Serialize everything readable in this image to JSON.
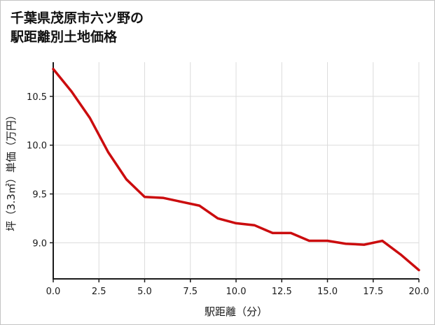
{
  "title": {
    "line1": "千葉県茂原市六ツ野の",
    "line2": "駅距離別土地価格"
  },
  "chart_data": {
    "type": "line",
    "title": "千葉県茂原市六ツ野の駅距離別土地価格",
    "xlabel": "駅距離（分）",
    "ylabel": "坪（3.3㎡）単価（万円）",
    "x": [
      0,
      1,
      2,
      3,
      4,
      5,
      6,
      7,
      8,
      9,
      10,
      11,
      12,
      13,
      14,
      15,
      16,
      17,
      18,
      19,
      20
    ],
    "values": [
      10.78,
      10.55,
      10.28,
      9.93,
      9.65,
      9.47,
      9.46,
      9.42,
      9.38,
      9.25,
      9.2,
      9.18,
      9.1,
      9.1,
      9.02,
      9.02,
      8.99,
      8.98,
      9.02,
      8.88,
      8.72
    ],
    "xlim": [
      0,
      20
    ],
    "ylim": [
      8.63,
      10.85
    ],
    "xticks": [
      0,
      2.5,
      5,
      7.5,
      10,
      12.5,
      15,
      17.5,
      20
    ],
    "xtick_labels": [
      "0.0",
      "2.5",
      "5.0",
      "7.5",
      "10.0",
      "12.5",
      "15.0",
      "17.5",
      "20.0"
    ],
    "yticks": [
      9.0,
      9.5,
      10.0,
      10.5
    ],
    "ytick_labels": [
      "9.0",
      "9.5",
      "10.0",
      "10.5"
    ],
    "grid": true,
    "legend": "none"
  },
  "colors": {
    "line": "#cb0c0e",
    "grid": "#dcdcdc",
    "spine": "#1a1a1a",
    "text": "#1a1a1a",
    "border": "#c4c4c4",
    "background": "#ffffff"
  }
}
